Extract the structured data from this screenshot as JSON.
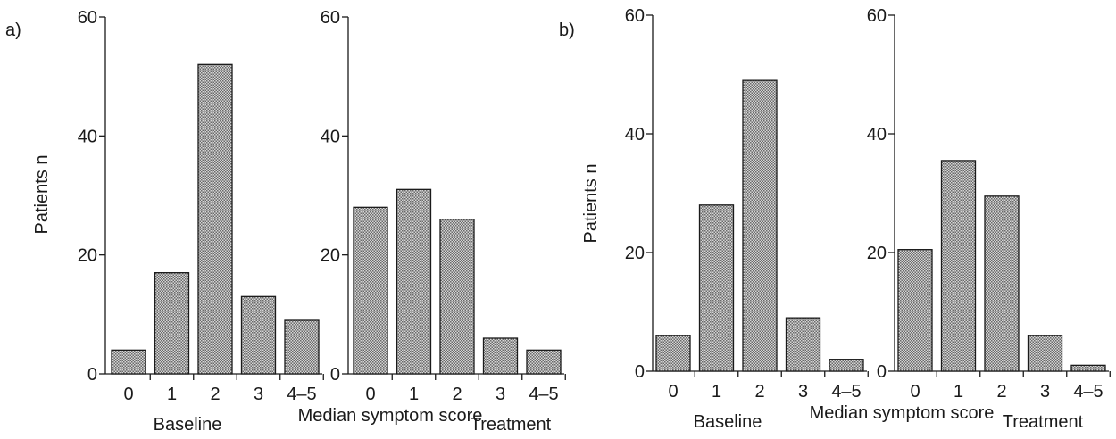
{
  "chart_data": [
    {
      "panel_label": "a)",
      "type": "bar",
      "ylabel": "Patients n",
      "xlabel": "Median symptom score",
      "ylim": [
        0,
        60
      ],
      "yticks": [
        "0",
        "20",
        "40",
        "60"
      ],
      "grid": false,
      "groups": [
        {
          "name": "Baseline",
          "categories": [
            "0",
            "1",
            "2",
            "3",
            "4–5"
          ],
          "values": [
            4,
            17,
            52,
            13,
            9
          ]
        },
        {
          "name": "Treatment",
          "categories": [
            "0",
            "1",
            "2",
            "3",
            "4–5"
          ],
          "values": [
            28,
            31,
            26,
            6,
            4
          ]
        }
      ]
    },
    {
      "panel_label": "b)",
      "type": "bar",
      "ylabel": "Patients n",
      "xlabel": "Median symptom score",
      "ylim": [
        0,
        60
      ],
      "yticks": [
        "0",
        "20",
        "40",
        "60"
      ],
      "grid": false,
      "groups": [
        {
          "name": "Baseline",
          "categories": [
            "0",
            "1",
            "2",
            "3",
            "4–5"
          ],
          "values": [
            6,
            28,
            49,
            9,
            2
          ]
        },
        {
          "name": "Treatment",
          "categories": [
            "0",
            "1",
            "2",
            "3",
            "4–5"
          ],
          "values": [
            20.5,
            35.5,
            29.5,
            6,
            1
          ]
        }
      ]
    }
  ]
}
